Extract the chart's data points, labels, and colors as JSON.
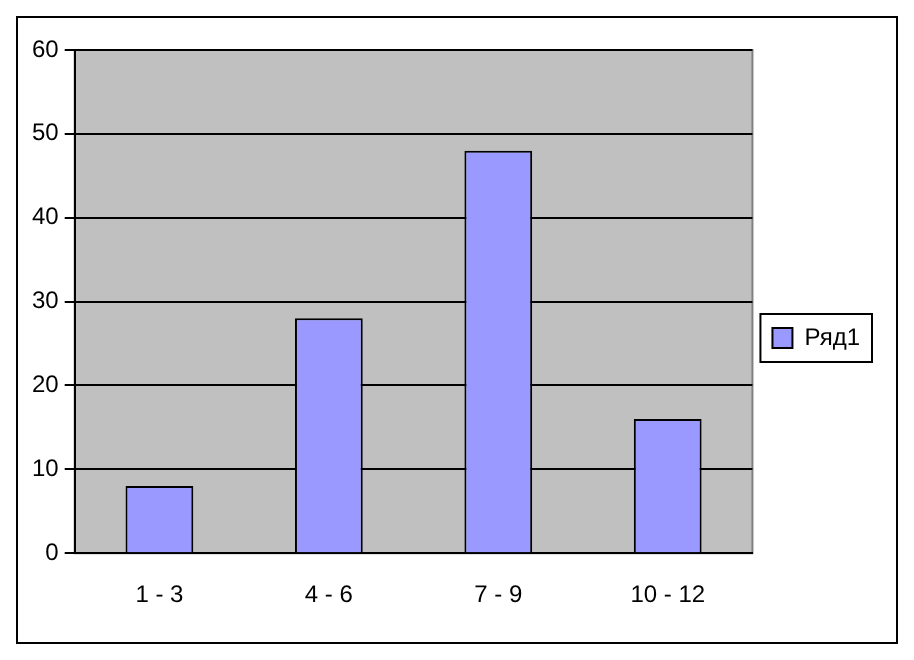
{
  "chart_data": {
    "type": "bar",
    "categories": [
      "1 - 3",
      "4 - 6",
      "7 - 9",
      "10 - 12"
    ],
    "series": [
      {
        "name": "Ряд1",
        "color": "#9999ff",
        "values": [
          8,
          28,
          48,
          16
        ]
      }
    ],
    "ylim": [
      0,
      60
    ],
    "yticks": [
      0,
      10,
      20,
      30,
      40,
      50,
      60
    ],
    "grid": "y",
    "legend": "right"
  }
}
